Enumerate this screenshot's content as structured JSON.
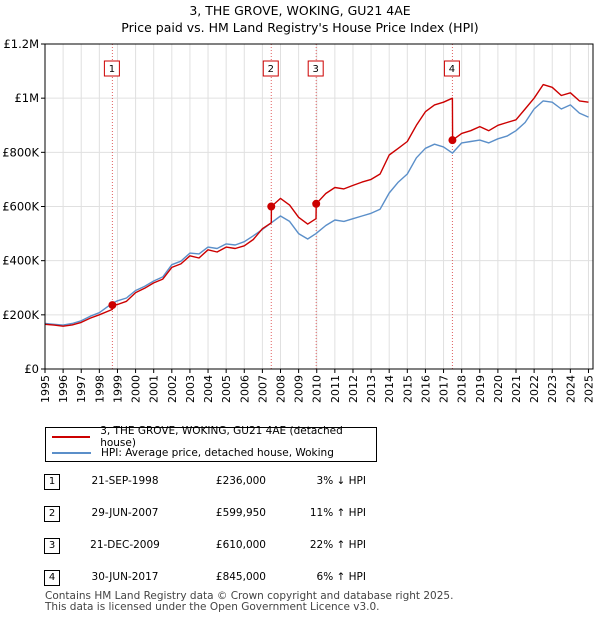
{
  "chart_data": {
    "type": "line",
    "title": "3, THE GROVE, WOKING, GU21 4AE",
    "subtitle": "Price paid vs. HM Land Registry's House Price Index (HPI)",
    "xlabel": "",
    "ylabel": "",
    "xlim": [
      1995,
      2025.25
    ],
    "ylim": [
      0,
      1200000
    ],
    "x_ticks": [
      "1995",
      "1996",
      "1997",
      "1998",
      "1999",
      "2000",
      "2001",
      "2002",
      "2003",
      "2004",
      "2005",
      "2006",
      "2007",
      "2008",
      "2009",
      "2010",
      "2011",
      "2012",
      "2013",
      "2014",
      "2015",
      "2016",
      "2017",
      "2018",
      "2019",
      "2020",
      "2021",
      "2022",
      "2023",
      "2024",
      "2025"
    ],
    "y_ticks": [
      {
        "value": 0,
        "label": "£0"
      },
      {
        "value": 200000,
        "label": "£200K"
      },
      {
        "value": 400000,
        "label": "£400K"
      },
      {
        "value": 600000,
        "label": "£600K"
      },
      {
        "value": 800000,
        "label": "£800K"
      },
      {
        "value": 1000000,
        "label": "£1M"
      },
      {
        "value": 1200000,
        "label": "£1.2M"
      }
    ],
    "grid": true,
    "series": [
      {
        "name": "3, THE GROVE, WOKING, GU21 4AE (detached house)",
        "color": "#cc0000",
        "x": [
          1995.0,
          1995.5,
          1996.0,
          1996.5,
          1997.0,
          1997.5,
          1998.0,
          1998.72,
          1998.73,
          1999.0,
          1999.5,
          2000.0,
          2000.5,
          2001.0,
          2001.5,
          2002.0,
          2002.5,
          2003.0,
          2003.5,
          2004.0,
          2004.5,
          2005.0,
          2005.5,
          2006.0,
          2006.5,
          2007.0,
          2007.49,
          2007.5,
          2008.0,
          2008.5,
          2009.0,
          2009.5,
          2009.96,
          2009.97,
          2010.5,
          2011.0,
          2011.5,
          2012.0,
          2012.5,
          2013.0,
          2013.5,
          2014.0,
          2014.5,
          2015.0,
          2015.5,
          2016.0,
          2016.5,
          2017.0,
          2017.49,
          2017.5,
          2018.0,
          2018.5,
          2019.0,
          2019.5,
          2020.0,
          2020.5,
          2021.0,
          2021.5,
          2022.0,
          2022.5,
          2023.0,
          2023.5,
          2024.0,
          2024.5,
          2025.0
        ],
        "values": [
          165000,
          162000,
          158000,
          163000,
          172000,
          188000,
          200000,
          220000,
          236000,
          238000,
          250000,
          282000,
          298000,
          318000,
          332000,
          375000,
          388000,
          418000,
          410000,
          440000,
          432000,
          450000,
          445000,
          455000,
          478000,
          518000,
          540000,
          599950,
          630000,
          605000,
          560000,
          535000,
          555000,
          610000,
          648000,
          670000,
          665000,
          678000,
          690000,
          700000,
          720000,
          790000,
          815000,
          840000,
          900000,
          950000,
          975000,
          985000,
          1000000,
          845000,
          870000,
          880000,
          895000,
          880000,
          900000,
          910000,
          920000,
          960000,
          1000000,
          1050000,
          1040000,
          1010000,
          1020000,
          990000,
          985000
        ]
      },
      {
        "name": "HPI: Average price, detached house, Woking",
        "color": "#5b8fc9",
        "x": [
          1995.0,
          1995.5,
          1996.0,
          1996.5,
          1997.0,
          1997.5,
          1998.0,
          1998.72,
          1999.0,
          1999.5,
          2000.0,
          2000.5,
          2001.0,
          2001.5,
          2002.0,
          2002.5,
          2003.0,
          2003.5,
          2004.0,
          2004.5,
          2005.0,
          2005.5,
          2006.0,
          2006.5,
          2007.0,
          2007.49,
          2008.0,
          2008.5,
          2009.0,
          2009.5,
          2009.96,
          2010.5,
          2011.0,
          2011.5,
          2012.0,
          2012.5,
          2013.0,
          2013.5,
          2014.0,
          2014.5,
          2015.0,
          2015.5,
          2016.0,
          2016.5,
          2017.0,
          2017.49,
          2018.0,
          2018.5,
          2019.0,
          2019.5,
          2020.0,
          2020.5,
          2021.0,
          2021.5,
          2022.0,
          2022.5,
          2023.0,
          2023.5,
          2024.0,
          2024.5,
          2025.0
        ],
        "values": [
          168000,
          165000,
          162000,
          168000,
          178000,
          195000,
          208000,
          243000,
          252000,
          262000,
          290000,
          305000,
          325000,
          340000,
          385000,
          398000,
          428000,
          425000,
          450000,
          445000,
          462000,
          458000,
          470000,
          492000,
          515000,
          540000,
          565000,
          545000,
          500000,
          480000,
          500000,
          530000,
          550000,
          545000,
          555000,
          565000,
          575000,
          590000,
          650000,
          690000,
          720000,
          780000,
          815000,
          830000,
          820000,
          797000,
          835000,
          840000,
          845000,
          835000,
          850000,
          860000,
          880000,
          910000,
          960000,
          990000,
          985000,
          960000,
          975000,
          945000,
          930000
        ]
      }
    ],
    "transactions": [
      {
        "n": "1",
        "x": 1998.72,
        "price": 236000,
        "date": "21-SEP-1998",
        "price_label": "£236,000",
        "hpi": "3% ↓ HPI"
      },
      {
        "n": "2",
        "x": 2007.49,
        "price": 599950,
        "date": "29-JUN-2007",
        "price_label": "£599,950",
        "hpi": "11% ↑ HPI"
      },
      {
        "n": "3",
        "x": 2009.97,
        "price": 610000,
        "date": "21-DEC-2009",
        "price_label": "£610,000",
        "hpi": "22% ↑ HPI"
      },
      {
        "n": "4",
        "x": 2017.49,
        "price": 845000,
        "date": "30-JUN-2017",
        "price_label": "£845,000",
        "hpi": "6% ↑ HPI"
      }
    ],
    "legend_position": "bottom"
  },
  "legend": {
    "property_label": "3, THE GROVE, WOKING, GU21 4AE (detached house)",
    "hpi_label": "HPI: Average price, detached house, Woking"
  },
  "footer": {
    "line1": "Contains HM Land Registry data © Crown copyright and database right 2025.",
    "line2": "This data is licensed under the Open Government Licence v3.0."
  }
}
